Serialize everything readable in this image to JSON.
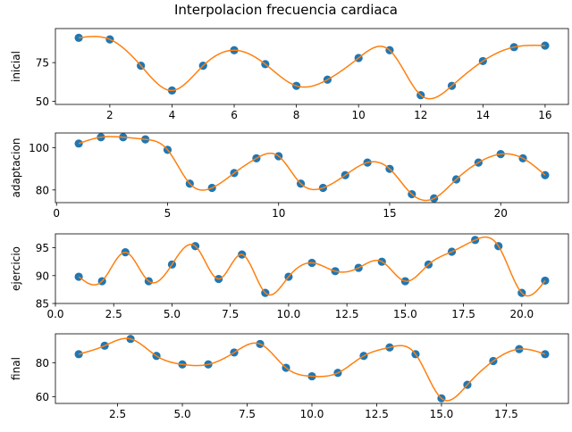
{
  "figure": {
    "title": "Interpolacion frecuencia cardiaca",
    "colors": {
      "points": "#1f77b4",
      "curve": "#ff7f0e",
      "axes": "#000000",
      "background": "#ffffff"
    }
  },
  "chart_data": [
    {
      "type": "scatter",
      "ylabel": "inicial",
      "xlim": [
        0.25,
        16.75
      ],
      "ylim": [
        48,
        97
      ],
      "xticks": [
        2,
        4,
        6,
        8,
        10,
        12,
        14,
        16
      ],
      "xtick_labels": [
        "2",
        "4",
        "6",
        "8",
        "10",
        "12",
        "14",
        "16"
      ],
      "yticks": [
        50,
        75
      ],
      "ytick_labels": [
        "50",
        "75"
      ],
      "grid": false,
      "series": [
        {
          "x": [
            1,
            2,
            3,
            4,
            5,
            6,
            7,
            8,
            9,
            10,
            11,
            12,
            13,
            14,
            15,
            16
          ],
          "values": [
            91,
            90,
            73,
            57,
            73,
            83,
            74,
            60,
            64,
            78,
            83,
            54,
            60,
            76,
            85,
            86
          ]
        }
      ]
    },
    {
      "type": "scatter",
      "ylabel": "adaptacion",
      "xlim": [
        -0.05,
        23.05
      ],
      "ylim": [
        74,
        107
      ],
      "xticks": [
        0,
        5,
        10,
        15,
        20
      ],
      "xtick_labels": [
        "0",
        "5",
        "10",
        "15",
        "20"
      ],
      "yticks": [
        80,
        100
      ],
      "ytick_labels": [
        "80",
        "100"
      ],
      "grid": false,
      "series": [
        {
          "x": [
            1,
            2,
            3,
            4,
            5,
            6,
            7,
            8,
            9,
            10,
            11,
            12,
            13,
            14,
            15,
            16,
            17,
            18,
            19,
            20,
            21,
            22
          ],
          "values": [
            102,
            105,
            105,
            104,
            99,
            83,
            81,
            88,
            95,
            96,
            83,
            81,
            87,
            93,
            90,
            78,
            76,
            85,
            93,
            97,
            95,
            87
          ]
        }
      ]
    },
    {
      "type": "scatter",
      "ylabel": "ejercicio",
      "xlim": [
        0,
        22
      ],
      "ylim": [
        85,
        97.5
      ],
      "xticks": [
        0,
        2.5,
        5,
        7.5,
        10,
        12.5,
        15,
        17.5,
        20
      ],
      "xtick_labels": [
        "0.0",
        "2.5",
        "5.0",
        "7.5",
        "10.0",
        "12.5",
        "15.0",
        "17.5",
        "20.0"
      ],
      "yticks": [
        85,
        90,
        95
      ],
      "ytick_labels": [
        "85",
        "90",
        "95"
      ],
      "grid": false,
      "series": [
        {
          "x": [
            1,
            2,
            3,
            4,
            5,
            6,
            7,
            8,
            9,
            10,
            11,
            12,
            13,
            14,
            15,
            16,
            17,
            18,
            19,
            20,
            21
          ],
          "values": [
            89.8,
            89.0,
            94.2,
            89.0,
            92.0,
            95.3,
            89.4,
            93.8,
            86.9,
            89.8,
            92.3,
            90.8,
            91.4,
            92.5,
            89.0,
            92.0,
            94.3,
            96.4,
            95.3,
            86.9,
            89.1
          ]
        }
      ]
    },
    {
      "type": "scatter",
      "ylabel": "final",
      "xlim": [
        0.1,
        19.9
      ],
      "ylim": [
        56,
        97
      ],
      "xticks": [
        2.5,
        5,
        7.5,
        10,
        12.5,
        15,
        17.5
      ],
      "xtick_labels": [
        "2.5",
        "5.0",
        "7.5",
        "10.0",
        "12.5",
        "15.0",
        "17.5"
      ],
      "yticks": [
        60,
        80
      ],
      "ytick_labels": [
        "60",
        "80"
      ],
      "grid": false,
      "series": [
        {
          "x": [
            1,
            2,
            3,
            4,
            5,
            6,
            7,
            8,
            9,
            10,
            11,
            12,
            13,
            14,
            15,
            16,
            17,
            18,
            19
          ],
          "values": [
            85,
            90,
            94,
            84,
            79,
            79,
            86,
            91,
            77,
            72,
            74,
            84,
            89,
            85,
            59,
            67,
            81,
            88,
            85
          ]
        }
      ]
    }
  ]
}
